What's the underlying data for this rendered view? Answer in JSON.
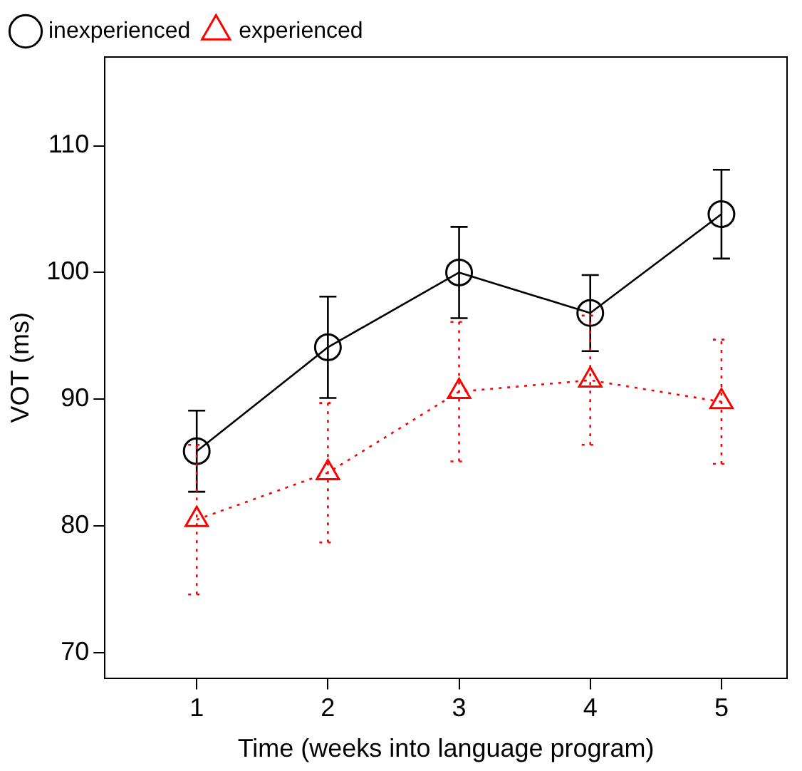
{
  "chart_data": {
    "type": "line",
    "xlabel": "Time (weeks into language program)",
    "ylabel": "VOT (ms)",
    "x": [
      1,
      2,
      3,
      4,
      5
    ],
    "xlim": [
      0.3,
      5.5
    ],
    "xticks": [
      1,
      2,
      3,
      4,
      5
    ],
    "ylim": [
      68,
      117
    ],
    "yticks": [
      70,
      80,
      90,
      100,
      110
    ],
    "grid": false,
    "legend": "top left",
    "series": [
      {
        "name": "inexperienced",
        "color": "#000000",
        "values": [
          85.9,
          94.1,
          100,
          96.8,
          104.6
        ],
        "errors": [
          3.2,
          4,
          3.6,
          3,
          3.5
        ],
        "marker": "circle",
        "line_style": "solid"
      },
      {
        "name": "experienced",
        "color": "#ff0000",
        "values": [
          80.5,
          84.2,
          90.6,
          91.5,
          89.8
        ],
        "errors": [
          5.9,
          5.5,
          5.5,
          5.1,
          4.9
        ],
        "marker": "triangle",
        "line_style": "dotted"
      }
    ]
  }
}
